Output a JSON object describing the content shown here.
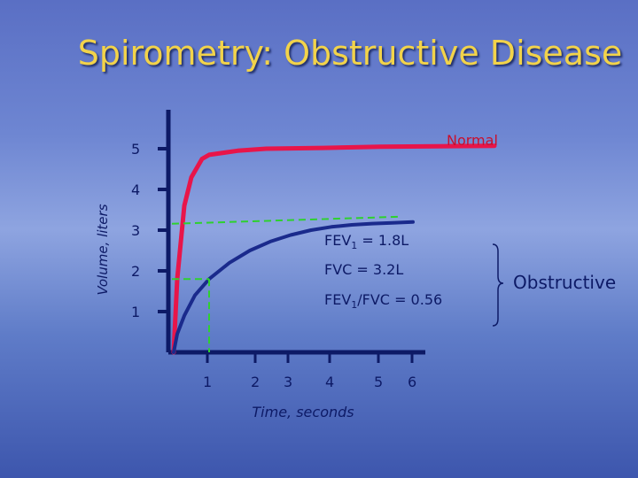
{
  "slide": {
    "title": "Spirometry:  Obstructive Disease"
  },
  "colors": {
    "normal_curve": "#e8154a",
    "obstructive_curve": "#1a2a8c",
    "axis": "#0d1a66",
    "guide": "#2ed12e",
    "title": "#f2d34a",
    "text": "#0d1a66",
    "label_normal": "#c8102e"
  },
  "chart_data": {
    "type": "line",
    "xlabel": "Time, seconds",
    "ylabel": "Volume, liters",
    "x_ticks": [
      "1",
      "2",
      "3",
      "4",
      "5",
      "6"
    ],
    "y_ticks": [
      "1",
      "2",
      "3",
      "4",
      "5"
    ],
    "series": [
      {
        "name": "Normal",
        "x": [
          0,
          0.1,
          0.3,
          0.5,
          0.8,
          1,
          1.5,
          2,
          3,
          4,
          5,
          6
        ],
        "y": [
          0,
          1.8,
          3.6,
          4.3,
          4.75,
          4.85,
          4.95,
          5.0,
          5.02,
          5.05,
          5.06,
          5.07
        ]
      },
      {
        "name": "Obstructive",
        "x": [
          0,
          0.1,
          0.3,
          0.6,
          1,
          1.5,
          2,
          2.5,
          3,
          3.5,
          4,
          4.5,
          5,
          5.5,
          6
        ],
        "y": [
          0,
          0.45,
          0.9,
          1.4,
          1.8,
          2.2,
          2.5,
          2.72,
          2.88,
          3.0,
          3.08,
          3.13,
          3.16,
          3.18,
          3.2
        ]
      }
    ],
    "annotations": {
      "fev1": "FEV",
      "fev1_sub": "1",
      "fev1_value": " = 1.8L",
      "fvc": "FVC = 3.2L",
      "ratio_a": "FEV",
      "ratio_sub": "1",
      "ratio_b": "/FVC = 0.56",
      "group_label": "Obstructive"
    },
    "fev1_level": 1.8,
    "fvc_level": 3.2,
    "fev1_time": 1
  }
}
